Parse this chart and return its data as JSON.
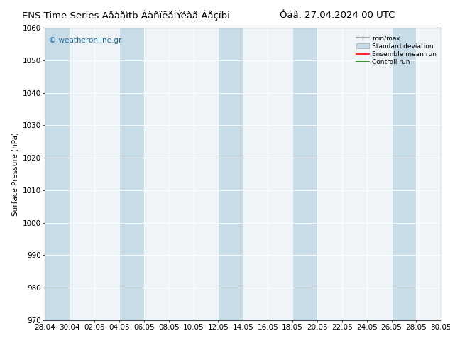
{
  "title_left": "ENS Time Series Äåàåìtb ÁàñïëåÍÝéàã Áåçïbi",
  "date_label": "Óáâ. 27.04.2024 00 UTC",
  "ylabel": "Surface Pressure (hPa)",
  "ylim": [
    970,
    1060
  ],
  "yticks": [
    970,
    980,
    990,
    1000,
    1010,
    1020,
    1030,
    1040,
    1050,
    1060
  ],
  "xtick_labels": [
    "28.04",
    "30.04",
    "02.05",
    "04.05",
    "06.05",
    "08.05",
    "10.05",
    "12.05",
    "14.05",
    "16.05",
    "18.05",
    "20.05",
    "22.05",
    "24.05",
    "26.05",
    "28.05",
    "30.05"
  ],
  "n_xticks": 17,
  "watermark": "© weatheronline.gr",
  "legend_labels": [
    "min/max",
    "Standard deviation",
    "Ensemble mean run",
    "Controll run"
  ],
  "bg_color": "#ffffff",
  "plot_bg_color": "#eef4f8",
  "band_color": "#c8dce8",
  "band_edge_color": "#aaaaaa",
  "grid_color": "#ffffff",
  "mean_color": "#ff0000",
  "control_color": "#008800",
  "title_fontsize": 9.5,
  "axis_fontsize": 7.5,
  "tick_fontsize": 7.5,
  "watermark_color": "#1a6699",
  "band_indices": [
    0,
    3,
    7,
    10,
    14
  ]
}
